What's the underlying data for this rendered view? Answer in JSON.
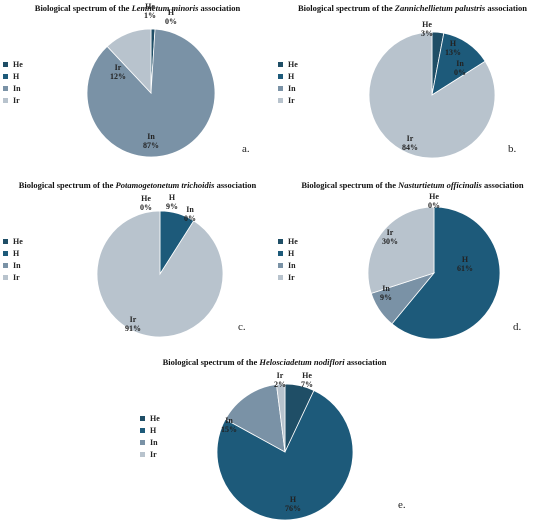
{
  "colors": {
    "He": "#1f4e66",
    "H": "#1d5a7a",
    "In": "#7a92a6",
    "Ir": "#b8c3cd"
  },
  "chart_data": [
    {
      "type": "pie",
      "title_prefix": "Biological spectrum of the ",
      "title_italic": "Lemnetum minoris",
      "title_suffix": " association",
      "legend": [
        "He",
        "H",
        "In",
        "Ir"
      ],
      "labels": [
        "He",
        "H",
        "In",
        "Ir"
      ],
      "values": [
        1,
        0,
        87,
        12
      ],
      "value_labels": [
        "1%",
        "0%",
        "87%",
        "12%"
      ],
      "panel_letter": "a.",
      "legend_placement": "left"
    },
    {
      "type": "pie",
      "title_prefix": "Biological spectrum of the ",
      "title_italic": "Zannichellietum palustris",
      "title_suffix": " association",
      "legend": [
        "He",
        "H",
        "In",
        "Ir"
      ],
      "labels": [
        "He",
        "H",
        "In",
        "Ir"
      ],
      "values": [
        3,
        13,
        0,
        84
      ],
      "value_labels": [
        "3%",
        "13%",
        "0%",
        "84%"
      ],
      "panel_letter": "b.",
      "legend_placement": "left"
    },
    {
      "type": "pie",
      "title_prefix": "Biological spectrum of the ",
      "title_italic": "Potamogetonetum trichoidis",
      "title_suffix": " association",
      "legend": [
        "He",
        "H",
        "In",
        "Ir"
      ],
      "labels": [
        "He",
        "H",
        "In",
        "Ir"
      ],
      "values": [
        0,
        9,
        0,
        91
      ],
      "value_labels": [
        "0%",
        "9%",
        "0%",
        "91%"
      ],
      "panel_letter": "c.",
      "legend_placement": "left"
    },
    {
      "type": "pie",
      "title_prefix": "Biological spectrum of the ",
      "title_italic": "Nasturtietum officinalis",
      "title_suffix": " association",
      "legend": [
        "He",
        "H",
        "In",
        "Ir"
      ],
      "labels": [
        "He",
        "H",
        "In",
        "Ir"
      ],
      "values": [
        0,
        61,
        9,
        30
      ],
      "value_labels": [
        "0%",
        "61%",
        "9%",
        "30%"
      ],
      "panel_letter": "d.",
      "legend_placement": "left"
    },
    {
      "type": "pie",
      "title_prefix": "Biological spectrum of the ",
      "title_italic": "Helosciadetum nodiflori",
      "title_suffix": " association",
      "legend": [
        "He",
        "H",
        "In",
        "Ir"
      ],
      "labels": [
        "He",
        "H",
        "In",
        "Ir"
      ],
      "values": [
        7,
        76,
        15,
        2
      ],
      "value_labels": [
        "7%",
        "76%",
        "15%",
        "2%"
      ],
      "panel_letter": "e.",
      "legend_placement": "left"
    }
  ]
}
